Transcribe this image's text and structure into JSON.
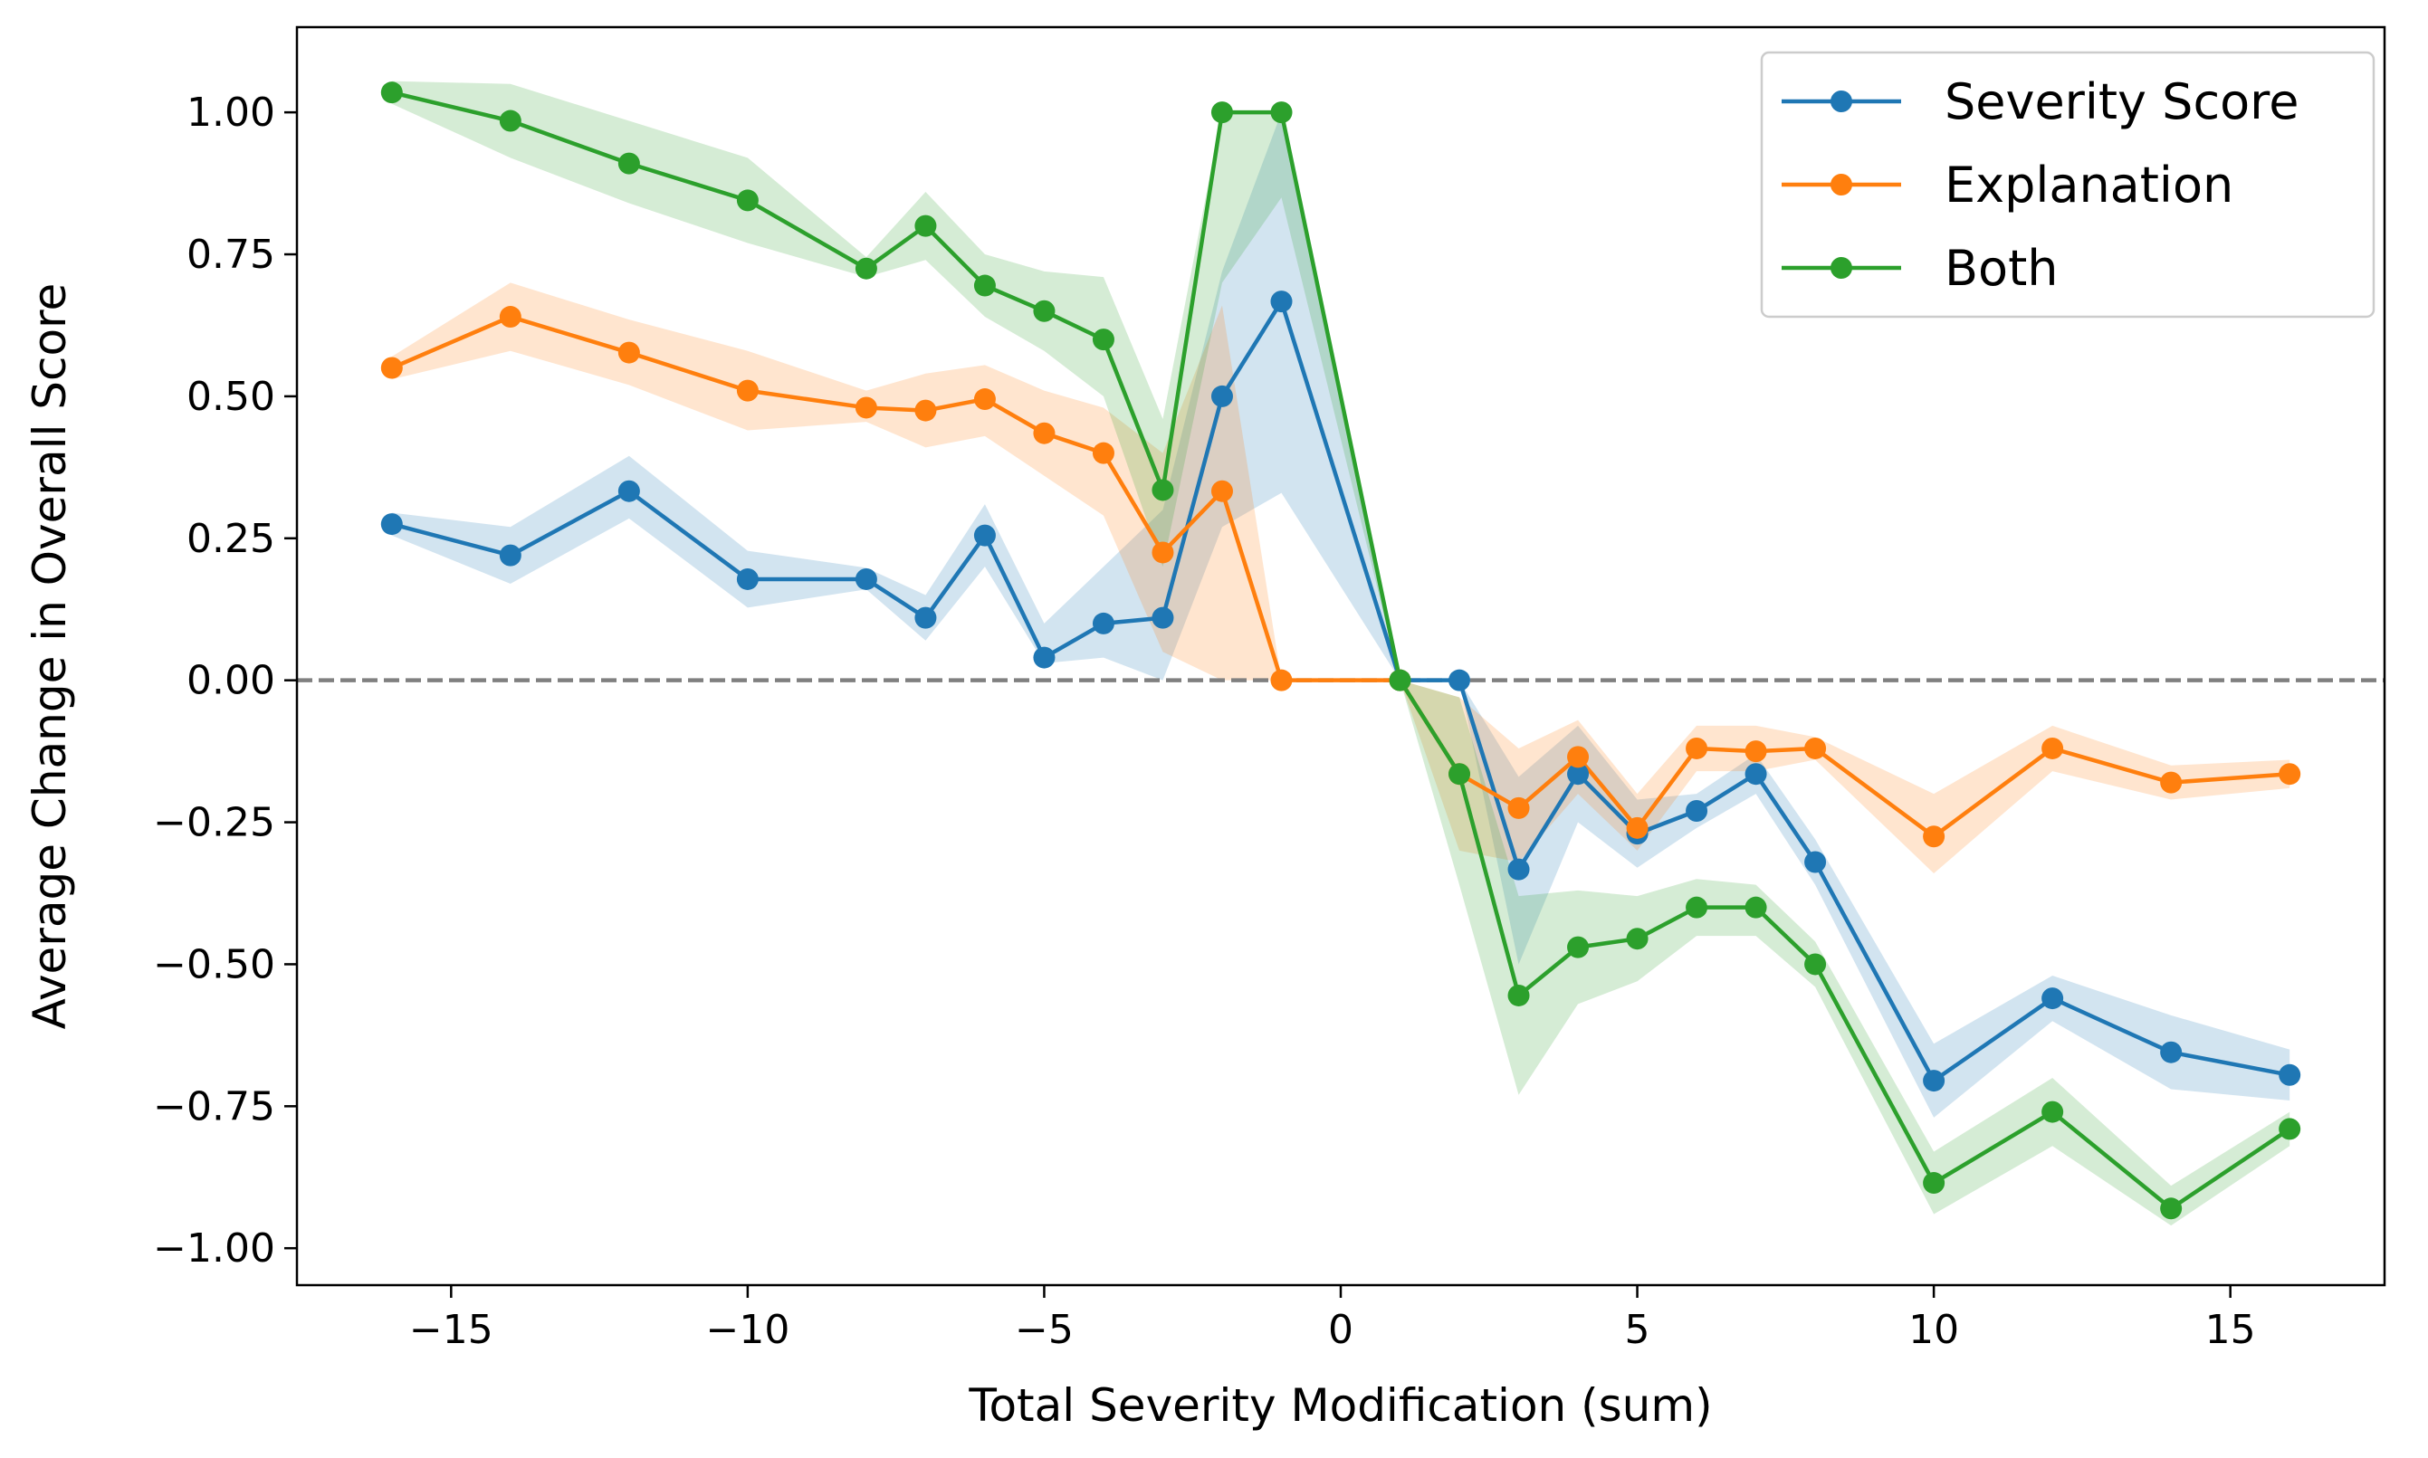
{
  "chart_data": {
    "type": "line",
    "title": "",
    "xlabel": "Total Severity Modification (sum)",
    "ylabel": "Average Change in Overall Score",
    "xlim": [
      -17.6,
      17.6
    ],
    "ylim": [
      -1.065,
      1.15
    ],
    "xticks": [
      -15,
      -10,
      -5,
      0,
      5,
      10,
      15
    ],
    "yticks": [
      -1.0,
      -0.75,
      -0.5,
      -0.25,
      0.0,
      0.25,
      0.5,
      0.75,
      1.0
    ],
    "xtick_labels": [
      "−15",
      "−10",
      "−5",
      "0",
      "5",
      "10",
      "15"
    ],
    "ytick_labels": [
      "−1.00",
      "−0.75",
      "−0.50",
      "−0.25",
      "0.00",
      "0.25",
      "0.50",
      "0.75",
      "1.00"
    ],
    "grid": false,
    "legend_position": "top-right",
    "reference_line": {
      "y": 0,
      "style": "dashed",
      "color": "#808080"
    },
    "x": [
      -16,
      -14,
      -12,
      -10,
      -8,
      -7,
      -6,
      -5,
      -4,
      -3,
      -2,
      -1,
      1,
      2,
      3,
      4,
      5,
      6,
      7,
      8,
      10,
      12,
      14,
      16
    ],
    "series": [
      {
        "name": "Severity Score",
        "color": "#1f77b4",
        "values": [
          0.275,
          0.22,
          0.333,
          0.178,
          0.178,
          0.11,
          0.255,
          0.04,
          0.1,
          0.11,
          0.5,
          0.667,
          0.0,
          0.0,
          -0.333,
          -0.165,
          -0.27,
          -0.23,
          -0.165,
          -0.32,
          -0.705,
          -0.56,
          -0.655,
          -0.695
        ],
        "lower": [
          0.255,
          0.17,
          0.285,
          0.128,
          0.16,
          0.07,
          0.2,
          0.03,
          0.04,
          0.0,
          0.27,
          0.33,
          0.0,
          0.0,
          -0.5,
          -0.25,
          -0.33,
          -0.26,
          -0.2,
          -0.36,
          -0.77,
          -0.6,
          -0.72,
          -0.74
        ],
        "upper": [
          0.295,
          0.27,
          0.395,
          0.228,
          0.198,
          0.15,
          0.31,
          0.1,
          0.2,
          0.3,
          0.72,
          1.0,
          0.0,
          0.0,
          -0.17,
          -0.08,
          -0.21,
          -0.2,
          -0.13,
          -0.28,
          -0.64,
          -0.52,
          -0.59,
          -0.65
        ]
      },
      {
        "name": "Explanation",
        "color": "#ff7f0e",
        "values": [
          0.55,
          0.64,
          0.577,
          0.51,
          0.48,
          0.475,
          0.495,
          0.435,
          0.4,
          0.225,
          0.333,
          0.0,
          0.0,
          -0.165,
          -0.225,
          -0.135,
          -0.26,
          -0.12,
          -0.125,
          -0.12,
          -0.275,
          -0.12,
          -0.18,
          -0.165
        ],
        "lower": [
          0.53,
          0.58,
          0.52,
          0.44,
          0.455,
          0.41,
          0.43,
          0.36,
          0.29,
          0.05,
          0.0,
          0.0,
          0.0,
          -0.3,
          -0.32,
          -0.2,
          -0.3,
          -0.16,
          -0.16,
          -0.14,
          -0.34,
          -0.16,
          -0.21,
          -0.19
        ],
        "upper": [
          0.57,
          0.7,
          0.635,
          0.58,
          0.51,
          0.54,
          0.555,
          0.51,
          0.48,
          0.4,
          0.66,
          0.0,
          0.0,
          -0.03,
          -0.12,
          -0.07,
          -0.2,
          -0.08,
          -0.08,
          -0.1,
          -0.2,
          -0.08,
          -0.15,
          -0.14
        ]
      },
      {
        "name": "Both",
        "color": "#2ca02c",
        "values": [
          1.035,
          0.985,
          0.91,
          0.845,
          0.725,
          0.8,
          0.695,
          0.65,
          0.6,
          0.335,
          1.0,
          1.0,
          0.0,
          -0.165,
          -0.555,
          -0.47,
          -0.455,
          -0.4,
          -0.4,
          -0.5,
          -0.885,
          -0.76,
          -0.93,
          -0.79
        ],
        "lower": [
          1.015,
          0.92,
          0.84,
          0.77,
          0.71,
          0.74,
          0.64,
          0.58,
          0.5,
          0.2,
          0.7,
          0.85,
          0.0,
          -0.36,
          -0.73,
          -0.57,
          -0.53,
          -0.45,
          -0.45,
          -0.54,
          -0.94,
          -0.82,
          -0.96,
          -0.82
        ],
        "upper": [
          1.055,
          1.05,
          0.985,
          0.92,
          0.745,
          0.86,
          0.75,
          0.72,
          0.71,
          0.46,
          1.0,
          1.0,
          0.0,
          -0.03,
          -0.38,
          -0.37,
          -0.38,
          -0.35,
          -0.36,
          -0.46,
          -0.83,
          -0.7,
          -0.89,
          -0.76
        ]
      }
    ]
  }
}
